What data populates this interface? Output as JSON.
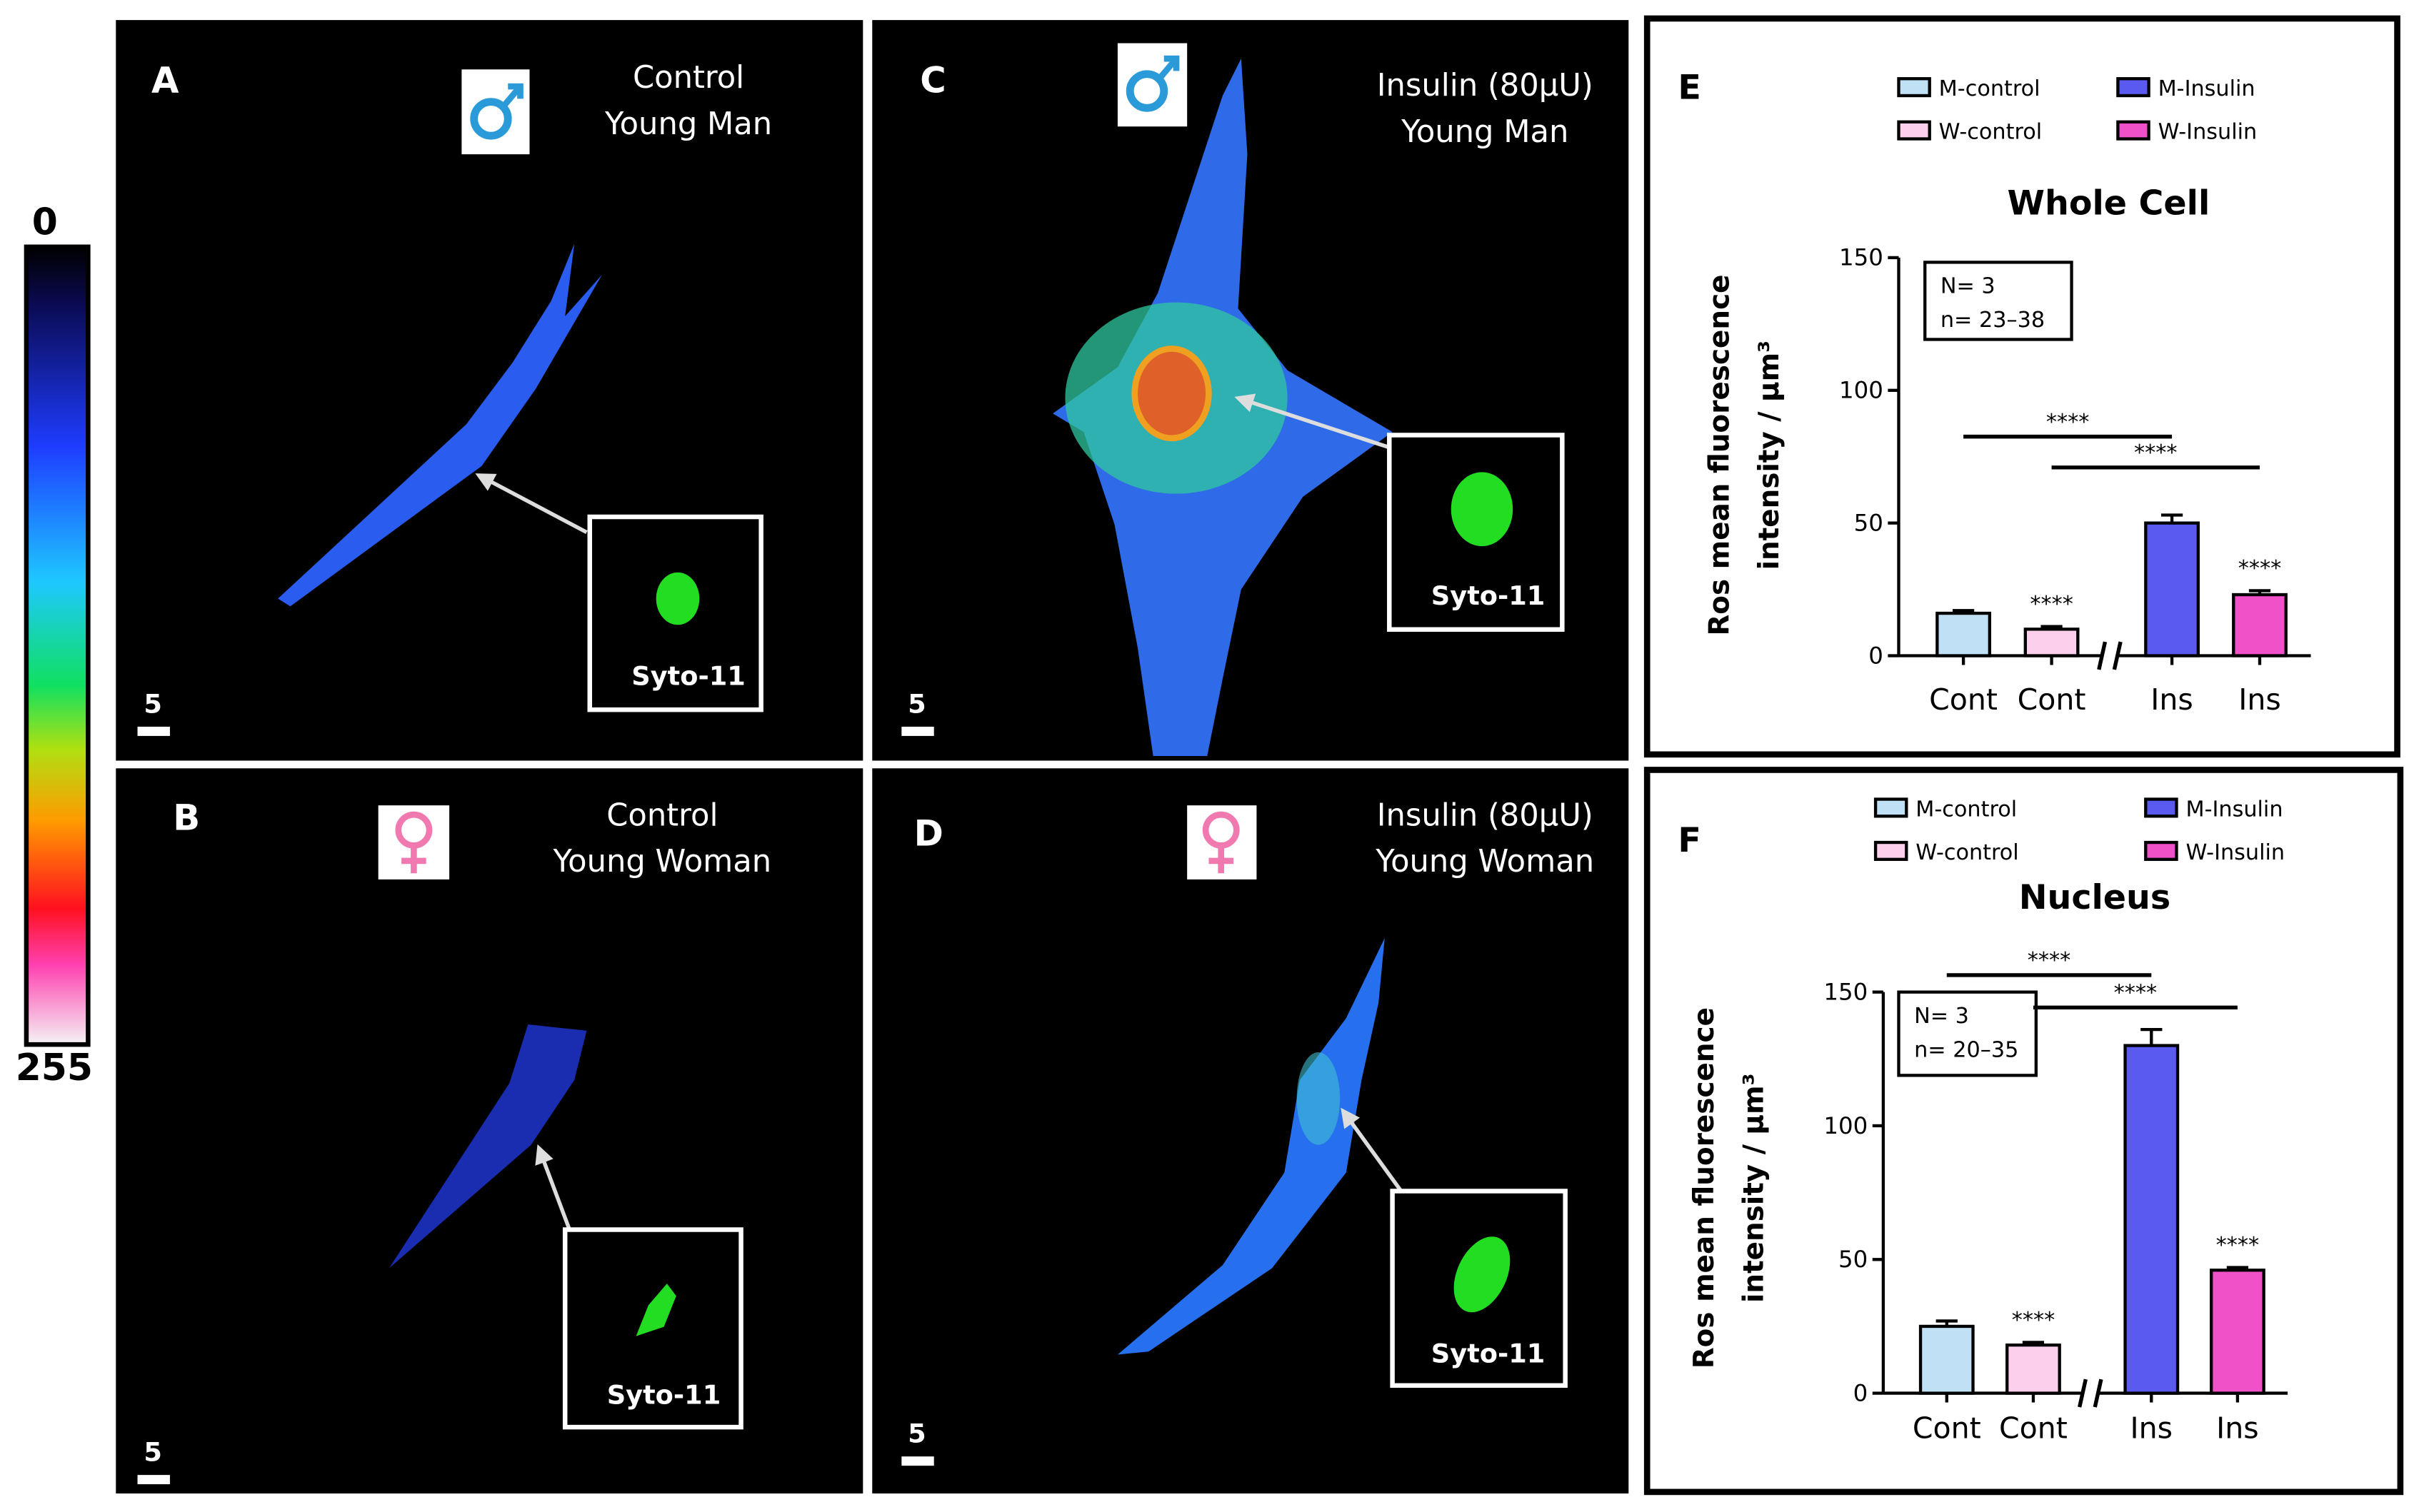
{
  "colorbar": {
    "ticks": [
      0,
      255
    ]
  },
  "panels": [
    {
      "letter": "A",
      "title": [
        "Control",
        "Young Man"
      ],
      "inset": "Syto-11",
      "scale": 5
    },
    {
      "letter": "B",
      "title": [
        "Control",
        "Young Woman"
      ],
      "inset": "Syto-11",
      "scale": 5
    },
    {
      "letter": "C",
      "title": [
        "Insulin (80µU)",
        "Young Man"
      ],
      "inset": "Syto-11",
      "scale": 5
    },
    {
      "letter": "D",
      "title": [
        "Insulin (80µU)",
        "Young Woman"
      ],
      "inset": "Syto-11",
      "scale": 5
    }
  ],
  "chart_data": [
    {
      "type": "bar",
      "letter": "E",
      "title": "Whole Cell",
      "ylabel": [
        "Ros mean fluorescence",
        "intensity / µm³"
      ],
      "categories": [
        "Cont",
        "Cont",
        "Ins",
        "Ins"
      ],
      "legend": [
        "M-control",
        "W-control",
        "M-Insulin",
        "W-Insulin"
      ],
      "colors": [
        "#bfe0f5",
        "#fcd0ec",
        "#5a5af0",
        "#f050c8"
      ],
      "values": [
        16,
        10,
        50,
        23
      ],
      "errors": [
        1,
        1,
        3,
        1.5
      ],
      "bar_stars": [
        null,
        "****",
        null,
        "****"
      ],
      "comparisons": [
        {
          "label": "****",
          "pair": [
            0,
            2
          ]
        },
        {
          "label": "****",
          "pair": [
            1,
            3
          ]
        }
      ],
      "stats": [
        "N= 3",
        "n= 23–38"
      ],
      "ylim": [
        0,
        150
      ],
      "yticks": [
        0,
        50,
        100,
        150
      ]
    },
    {
      "type": "bar",
      "letter": "F",
      "title": "Nucleus",
      "ylabel": [
        "Ros mean fluorescence",
        "intensity / µm³"
      ],
      "categories": [
        "Cont",
        "Cont",
        "Ins",
        "Ins"
      ],
      "legend": [
        "M-control",
        "W-control",
        "M-Insulin",
        "W-Insulin"
      ],
      "colors": [
        "#bfe0f5",
        "#fcd0ec",
        "#5a5af0",
        "#f050c8"
      ],
      "values": [
        25,
        18,
        130,
        46
      ],
      "errors": [
        2,
        1,
        6,
        1
      ],
      "bar_stars": [
        null,
        "****",
        null,
        "****"
      ],
      "comparisons": [
        {
          "label": "****",
          "pair": [
            0,
            2
          ]
        },
        {
          "label": "****",
          "pair": [
            1,
            3
          ]
        }
      ],
      "stats": [
        "N= 3",
        "n= 20–35"
      ],
      "ylim": [
        0,
        150
      ],
      "yticks": [
        0,
        50,
        100,
        150
      ]
    }
  ]
}
